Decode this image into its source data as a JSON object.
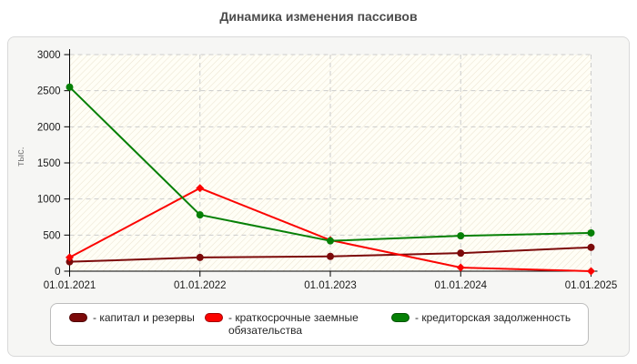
{
  "title": "Динамика изменения пассивов",
  "chart_data": {
    "type": "line",
    "title": "Динамика изменения пассивов",
    "xlabel": "",
    "ylabel": "тыс.",
    "categories": [
      "01.01.2021",
      "01.01.2022",
      "01.01.2023",
      "01.01.2024",
      "01.01.2025"
    ],
    "yticks": [
      0,
      500,
      1000,
      1500,
      2000,
      2500,
      3000
    ],
    "ylim": [
      0,
      3000
    ],
    "grid": true,
    "legend_position": "bottom",
    "series": [
      {
        "name": "капитал и резервы",
        "legend_label": "- капитал и резервы",
        "color": "#7c0a0a",
        "marker": "circle",
        "values": [
          130,
          190,
          205,
          250,
          330
        ]
      },
      {
        "name": "краткосрочные заемные обязательства",
        "legend_label": "- краткосрочные заемные обязательства",
        "color": "#fb0300",
        "marker": "diamond",
        "values": [
          190,
          1150,
          430,
          50,
          0
        ]
      },
      {
        "name": "кредиторская задолженность",
        "legend_label": "- кредиторская задолженность",
        "color": "#068006",
        "marker": "circle",
        "values": [
          2550,
          780,
          420,
          490,
          530
        ]
      }
    ]
  }
}
